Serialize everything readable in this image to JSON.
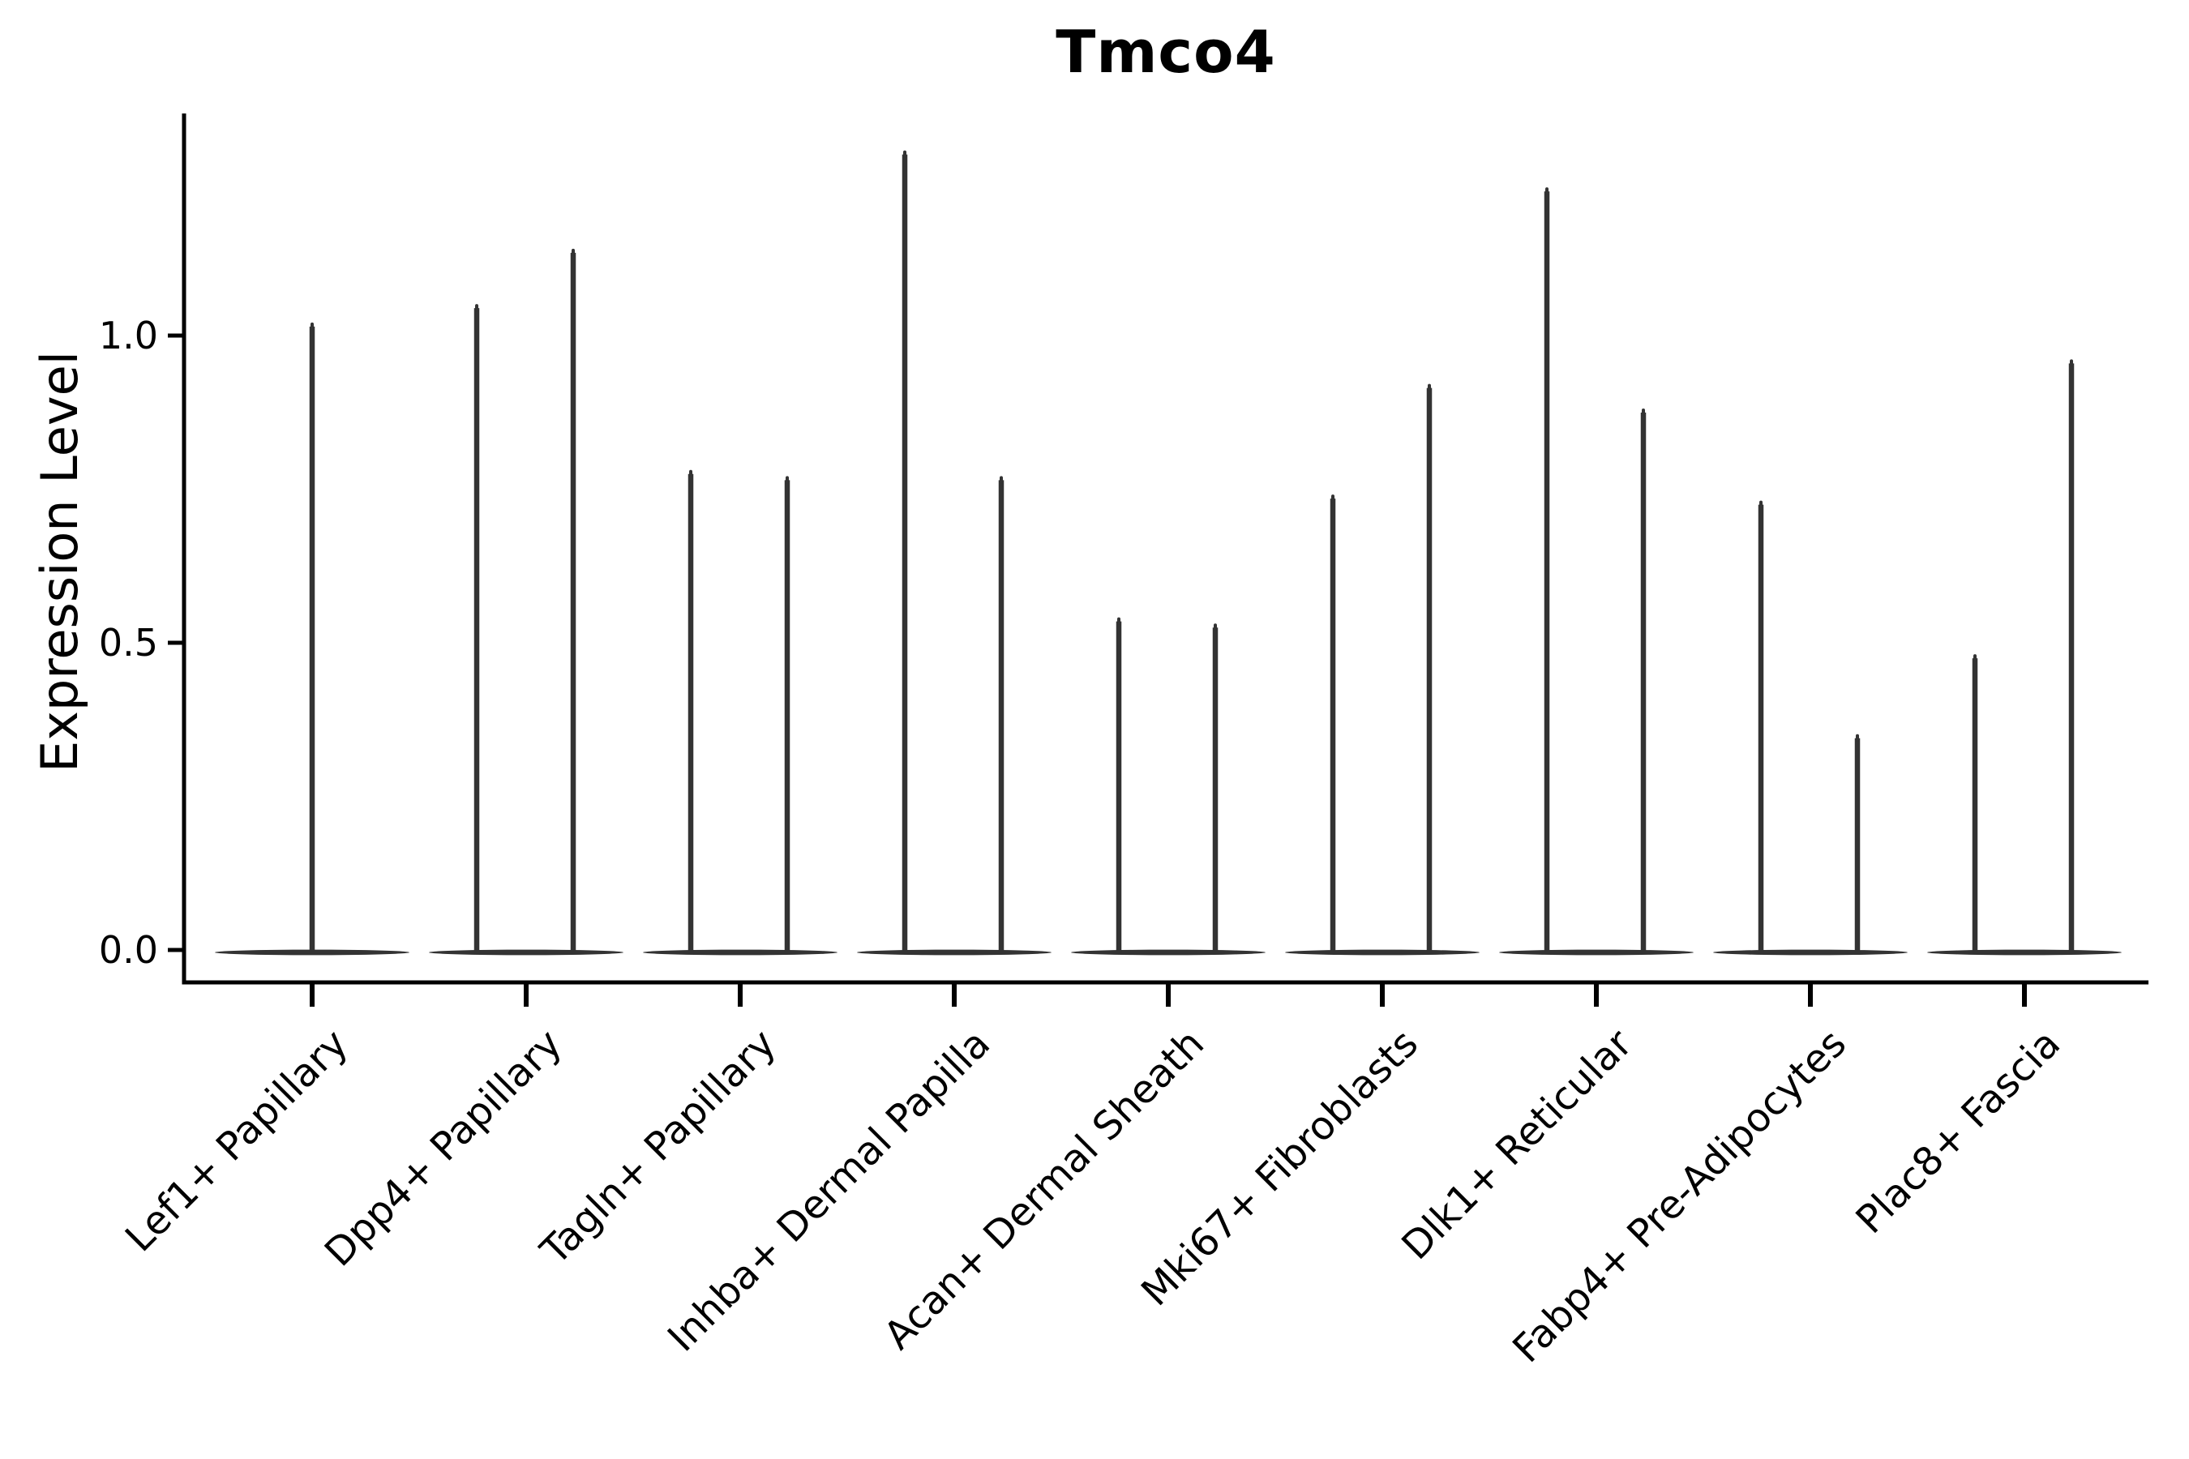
{
  "figure": {
    "title": "Tmco4",
    "y_axis": {
      "label": "Expression Level",
      "tick_labels": [
        "0.0",
        "0.5",
        "1.0"
      ]
    },
    "x_axis": {
      "categories": [
        "Lef1+ Papillary",
        "Dpp4+ Papillary",
        "Tagln+ Papillary",
        "Inhba+ Dermal Papilla",
        "Acan+ Dermal Sheath",
        "Mki67+ Fibroblasts",
        "Dlk1+ Reticular",
        "Fabp4+ Pre-Adipocytes",
        "Plac8+ Fascia"
      ]
    }
  },
  "chart_data": {
    "type": "violin",
    "title": "Tmco4",
    "xlabel": "",
    "ylabel": "Expression Level",
    "categories": [
      "Lef1+ Papillary",
      "Dpp4+ Papillary",
      "Tagln+ Papillary",
      "Inhba+ Dermal Papilla",
      "Acan+ Dermal Sheath",
      "Mki67+ Fibroblasts",
      "Dlk1+ Reticular",
      "Fabp4+ Pre-Adipocytes",
      "Plac8+ Fascia"
    ],
    "yticks": [
      0.0,
      0.5,
      1.0
    ],
    "ylim": [
      0,
      1.36
    ],
    "grid": false,
    "legend": "none",
    "description": "Zero-inflated expression violins: each violin is a wide flat density at expression 0 with a thin vertical spike reaching the maximum expression value. All categories except the first show two violins side by side; the first category shows a single centered violin.",
    "violins": [
      {
        "category": "Lef1+ Papillary",
        "spike_maxima": [
          1.02
        ]
      },
      {
        "category": "Dpp4+ Papillary",
        "spike_maxima": [
          1.05,
          1.14
        ]
      },
      {
        "category": "Tagln+ Papillary",
        "spike_maxima": [
          0.78,
          0.77
        ]
      },
      {
        "category": "Inhba+ Dermal Papilla",
        "spike_maxima": [
          1.3,
          0.77
        ]
      },
      {
        "category": "Acan+ Dermal Sheath",
        "spike_maxima": [
          0.54,
          0.53
        ]
      },
      {
        "category": "Mki67+ Fibroblasts",
        "spike_maxima": [
          0.74,
          0.92
        ]
      },
      {
        "category": "Dlk1+ Reticular",
        "spike_maxima": [
          1.24,
          0.88
        ]
      },
      {
        "category": "Fabp4+ Pre-Adipocytes",
        "spike_maxima": [
          0.73,
          0.35
        ]
      },
      {
        "category": "Plac8+ Fascia",
        "spike_maxima": [
          0.48,
          0.96
        ]
      }
    ],
    "colors": {
      "violin": "#333333",
      "axis": "#000000",
      "text": "#000000",
      "background": "#ffffff"
    }
  }
}
